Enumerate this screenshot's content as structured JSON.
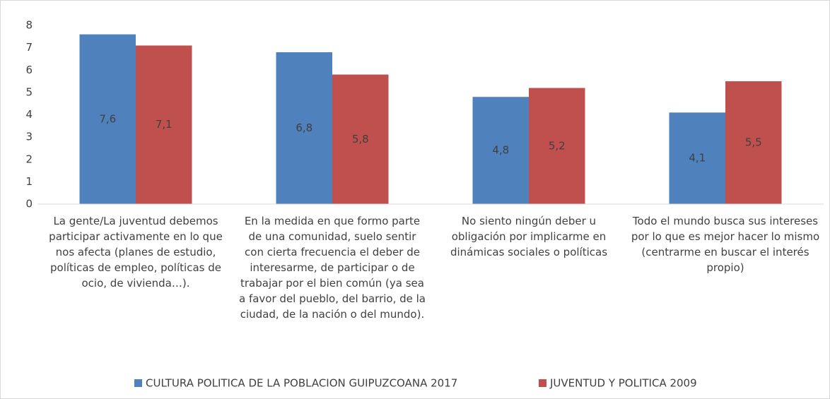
{
  "chart_data": {
    "type": "bar",
    "categories": [
      "La gente/La juventud debemos participar activamente en lo que nos afecta (planes de estudio, políticas de empleo, políticas de ocio, de vivienda…).",
      "En la medida en que formo parte de una comunidad, suelo sentir con cierta frecuencia el deber de interesarme, de participar o de trabajar por el bien común (ya sea a favor del pueblo, del barrio, de la ciudad, de la nación o del mundo).",
      "No siento ningún deber u obligación por implicarme en dinámicas sociales o políticas",
      "Todo el mundo busca sus intereses por lo que es mejor hacer lo mismo (centrarme en buscar el interés propio)"
    ],
    "series": [
      {
        "name": "CULTURA POLITICA DE LA POBLACION GUIPUZCOANA 2017",
        "color": "#4f81bd",
        "values": [
          7.6,
          6.8,
          4.8,
          4.1
        ],
        "value_labels": [
          "7,6",
          "6,8",
          "4,8",
          "4,1"
        ]
      },
      {
        "name": "JUVENTUD Y POLITICA 2009",
        "color": "#c0504d",
        "values": [
          7.1,
          5.8,
          5.2,
          5.5
        ],
        "value_labels": [
          "7,1",
          "5,8",
          "5,2",
          "5,5"
        ]
      }
    ],
    "ylim": [
      0,
      8
    ],
    "yticks": [
      0,
      1,
      2,
      3,
      4,
      5,
      6,
      7,
      8
    ],
    "grid": false
  }
}
